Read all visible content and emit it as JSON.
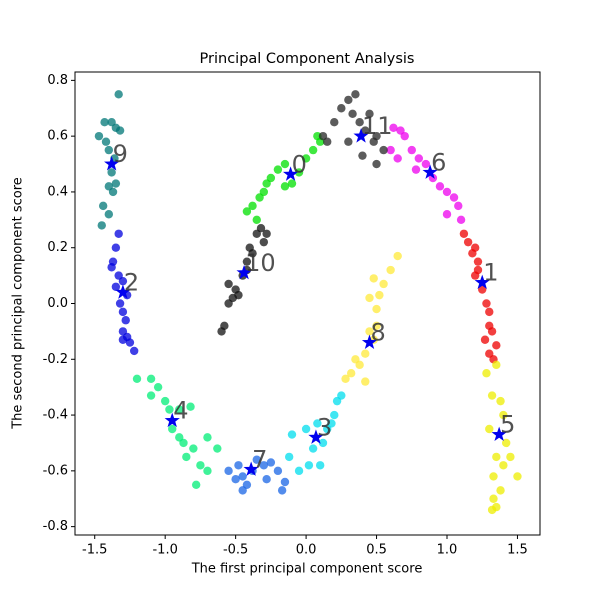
{
  "chart_data": {
    "type": "scatter",
    "title": "Principal Component Analysis",
    "xlabel": "The first principal component score",
    "ylabel": "The second principal component score",
    "xlim": [
      -1.64,
      1.66
    ],
    "ylim": [
      -0.83,
      0.83
    ],
    "xticks": [
      -1.5,
      {
        "value": -1.0,
        "label": "-1.0"
      },
      -0.5,
      {
        "value": 0.0,
        "label": "0.0"
      },
      0.5,
      {
        "value": 1.0,
        "label": "1.0"
      },
      1.5
    ],
    "yticks": [
      -0.8,
      -0.6,
      -0.4,
      -0.2,
      {
        "value": 0.0,
        "label": "0.0"
      },
      0.2,
      0.4,
      0.6,
      0.8
    ],
    "center_color": "#0000ee",
    "series": [
      {
        "label": "0",
        "color": "#00e000",
        "center_x": -0.11,
        "center_y": 0.463,
        "x": [
          -0.42,
          -0.38,
          -0.33,
          -0.35,
          -0.28,
          -0.25,
          -0.2,
          -0.15,
          -0.1,
          -0.05,
          0.0,
          0.05,
          0.1,
          -0.3,
          0.08,
          -0.15
        ],
        "y": [
          0.33,
          0.35,
          0.38,
          0.3,
          0.43,
          0.45,
          0.48,
          0.5,
          0.43,
          0.47,
          0.52,
          0.55,
          0.58,
          0.4,
          0.6,
          0.42
        ]
      },
      {
        "label": "1",
        "color": "#ee0000",
        "center_x": 1.25,
        "center_y": 0.075,
        "x": [
          1.12,
          1.15,
          1.18,
          1.2,
          1.22,
          1.2,
          1.25,
          1.28,
          1.3,
          1.3,
          1.32,
          1.27,
          1.35,
          1.3,
          1.33,
          1.22
        ],
        "y": [
          0.25,
          0.22,
          0.18,
          0.2,
          0.15,
          0.1,
          0.05,
          0.0,
          -0.03,
          -0.08,
          -0.1,
          -0.13,
          -0.15,
          -0.18,
          -0.2,
          0.12
        ]
      },
      {
        "label": "2",
        "color": "#0000dd",
        "center_x": -1.3,
        "center_y": 0.04,
        "x": [
          -1.33,
          -1.35,
          -1.37,
          -1.38,
          -1.33,
          -1.3,
          -1.35,
          -1.27,
          -1.32,
          -1.3,
          -1.28,
          -1.3,
          -1.27,
          -1.3,
          -1.25,
          -1.22
        ],
        "y": [
          0.25,
          0.2,
          0.15,
          0.13,
          0.1,
          0.08,
          0.06,
          0.03,
          0.0,
          -0.03,
          -0.06,
          -0.1,
          -0.12,
          -0.13,
          -0.14,
          -0.17
        ]
      },
      {
        "label": "3",
        "color": "#00ddee",
        "center_x": 0.07,
        "center_y": -0.48,
        "x": [
          -0.12,
          -0.05,
          0.0,
          0.05,
          0.1,
          0.12,
          0.15,
          0.18,
          0.2,
          0.22,
          0.25,
          -0.1,
          0.02,
          0.08
        ],
        "y": [
          -0.55,
          -0.6,
          -0.45,
          -0.52,
          -0.58,
          -0.5,
          -0.45,
          -0.43,
          -0.4,
          -0.35,
          -0.33,
          -0.47,
          -0.58,
          -0.43
        ]
      },
      {
        "label": "4",
        "color": "#00ee77",
        "center_x": -0.95,
        "center_y": -0.42,
        "x": [
          -1.2,
          -1.1,
          -1.05,
          -1.1,
          -1.0,
          -0.97,
          -0.9,
          -0.82,
          -0.95,
          -0.9,
          -0.87,
          -0.8,
          -0.85,
          -0.7,
          -0.75,
          -0.63,
          -0.78,
          -0.7
        ],
        "y": [
          -0.27,
          -0.27,
          -0.3,
          -0.33,
          -0.35,
          -0.38,
          -0.38,
          -0.37,
          -0.45,
          -0.48,
          -0.5,
          -0.52,
          -0.55,
          -0.48,
          -0.58,
          -0.52,
          -0.65,
          -0.6
        ]
      },
      {
        "label": "5",
        "color": "#eeee00",
        "center_x": 1.37,
        "center_y": -0.47,
        "x": [
          1.28,
          1.35,
          1.32,
          1.38,
          1.4,
          1.3,
          1.42,
          1.35,
          1.4,
          1.33,
          1.38,
          1.33,
          1.35,
          1.32,
          1.5,
          1.45
        ],
        "y": [
          -0.25,
          -0.22,
          -0.33,
          -0.35,
          -0.4,
          -0.45,
          -0.5,
          -0.55,
          -0.58,
          -0.62,
          -0.67,
          -0.7,
          -0.73,
          -0.74,
          -0.62,
          -0.55
        ]
      },
      {
        "label": "6",
        "color": "#ee00ee",
        "center_x": 0.88,
        "center_y": 0.47,
        "x": [
          0.62,
          0.67,
          0.7,
          0.6,
          0.65,
          0.75,
          0.8,
          0.85,
          0.9,
          0.95,
          1.0,
          1.05,
          1.08,
          1.0,
          1.1,
          0.78
        ],
        "y": [
          0.63,
          0.62,
          0.6,
          0.55,
          0.52,
          0.55,
          0.52,
          0.5,
          0.45,
          0.42,
          0.4,
          0.38,
          0.35,
          0.32,
          0.3,
          0.48
        ]
      },
      {
        "label": "7",
        "color": "#1a66e6",
        "center_x": -0.39,
        "center_y": -0.595,
        "x": [
          -0.55,
          -0.5,
          -0.48,
          -0.45,
          -0.42,
          -0.38,
          -0.35,
          -0.3,
          -0.28,
          -0.25,
          -0.2,
          -0.17,
          -0.15,
          -0.45
        ],
        "y": [
          -0.6,
          -0.63,
          -0.58,
          -0.62,
          -0.65,
          -0.6,
          -0.56,
          -0.58,
          -0.63,
          -0.57,
          -0.6,
          -0.67,
          -0.64,
          -0.67
        ]
      },
      {
        "label": "8",
        "color": "#ffea3a",
        "center_x": 0.45,
        "center_y": -0.14,
        "x": [
          0.28,
          0.32,
          0.35,
          0.38,
          0.42,
          0.45,
          0.48,
          0.5,
          0.5,
          0.52,
          0.45,
          0.48,
          0.55,
          0.6,
          0.65,
          0.42
        ],
        "y": [
          -0.27,
          -0.25,
          -0.2,
          -0.22,
          -0.18,
          -0.1,
          -0.13,
          -0.08,
          -0.02,
          0.03,
          0.02,
          0.09,
          0.07,
          0.12,
          0.17,
          -0.28
        ]
      },
      {
        "label": "9",
        "color": "#007777",
        "center_x": -1.38,
        "center_y": 0.5,
        "x": [
          -1.33,
          -1.38,
          -1.43,
          -1.35,
          -1.32,
          -1.47,
          -1.42,
          -1.4,
          -1.36,
          -1.38,
          -1.35,
          -1.4,
          -1.37,
          -1.44,
          -1.4,
          -1.45
        ],
        "y": [
          0.75,
          0.65,
          0.65,
          0.63,
          0.62,
          0.6,
          0.58,
          0.55,
          0.52,
          0.47,
          0.43,
          0.42,
          0.4,
          0.35,
          0.32,
          0.28
        ]
      },
      {
        "label": "10",
        "color": "#111111",
        "center_x": -0.44,
        "center_y": 0.11,
        "x": [
          -0.6,
          -0.58,
          -0.55,
          -0.52,
          -0.5,
          -0.48,
          -0.45,
          -0.42,
          -0.4,
          -0.35,
          -0.32,
          -0.3,
          -0.28,
          -0.38,
          -0.55,
          -0.42
        ],
        "y": [
          -0.1,
          -0.08,
          0.0,
          0.02,
          0.05,
          0.03,
          0.1,
          0.15,
          0.2,
          0.25,
          0.27,
          0.22,
          0.25,
          0.18,
          0.07,
          0.12
        ]
      },
      {
        "label": "11",
        "color": "#262626",
        "center_x": 0.39,
        "center_y": 0.6,
        "x": [
          0.12,
          0.15,
          0.2,
          0.25,
          0.3,
          0.35,
          0.33,
          0.38,
          0.42,
          0.48,
          0.5,
          0.55,
          0.4,
          0.3,
          0.5,
          0.45
        ],
        "y": [
          0.6,
          0.58,
          0.65,
          0.7,
          0.73,
          0.75,
          0.68,
          0.65,
          0.62,
          0.58,
          0.6,
          0.55,
          0.53,
          0.58,
          0.5,
          0.68
        ]
      }
    ]
  }
}
